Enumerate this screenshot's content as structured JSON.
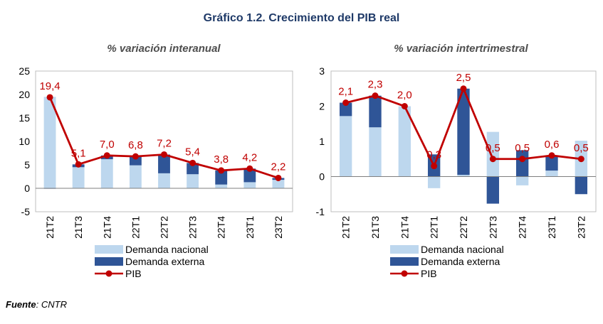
{
  "header": {
    "title": "Gráfico 1.2. Crecimiento del PIB real"
  },
  "source": {
    "label": "Fuente",
    "text": ": CNTR"
  },
  "legend_labels": {
    "nacional": "Demanda nacional",
    "externa": "Demanda externa",
    "pib": "PIB"
  },
  "colors": {
    "nacional": "#bdd7ee",
    "externa": "#2f5597",
    "pib": "#c00000",
    "axis": "#7f7f7f"
  },
  "chart_data": [
    {
      "type": "bar",
      "subtitle": "% variación interanual",
      "categories": [
        "21T2",
        "21T3",
        "21T4",
        "22T1",
        "22T2",
        "22T3",
        "22T4",
        "23T1",
        "23T2"
      ],
      "ylim": [
        -5,
        25
      ],
      "yticks": [
        -5,
        0,
        5,
        10,
        15,
        20,
        25
      ],
      "series": [
        {
          "name": "Demanda nacional",
          "kind": "stacked-bar",
          "values": [
            19.5,
            4.5,
            6.2,
            4.9,
            3.2,
            3.0,
            0.8,
            1.3,
            1.8
          ]
        },
        {
          "name": "Demanda externa",
          "kind": "stacked-bar",
          "values": [
            -0.1,
            0.6,
            0.8,
            1.9,
            4.0,
            2.4,
            3.0,
            2.9,
            0.4
          ]
        },
        {
          "name": "PIB",
          "kind": "line",
          "values": [
            19.4,
            5.1,
            7.0,
            6.8,
            7.2,
            5.4,
            3.8,
            4.2,
            2.2
          ]
        }
      ],
      "data_labels": [
        "19,4",
        "5,1",
        "7,0",
        "6,8",
        "7,2",
        "5,4",
        "3,8",
        "4,2",
        "2,2"
      ],
      "ytick_labels": [
        "-5",
        "0",
        "5",
        "10",
        "15",
        "20",
        "25"
      ]
    },
    {
      "type": "bar",
      "subtitle": "% variación intertrimestral",
      "categories": [
        "21T2",
        "21T3",
        "21T4",
        "22T1",
        "22T2",
        "22T3",
        "22T4",
        "23T1",
        "23T2"
      ],
      "ylim": [
        -1,
        3
      ],
      "yticks": [
        -1,
        0,
        1,
        2,
        3
      ],
      "series": [
        {
          "name": "Demanda nacional",
          "kind": "stacked-bar",
          "values": [
            1.72,
            1.4,
            2.0,
            -0.33,
            0.05,
            1.27,
            -0.25,
            0.17,
            1.02
          ]
        },
        {
          "name": "Demanda externa",
          "kind": "stacked-bar",
          "values": [
            0.38,
            0.9,
            0.0,
            0.63,
            2.45,
            -0.77,
            0.75,
            0.43,
            -0.5
          ]
        },
        {
          "name": "PIB",
          "kind": "line",
          "values": [
            2.1,
            2.3,
            2.0,
            0.3,
            2.5,
            0.5,
            0.5,
            0.6,
            0.5
          ]
        }
      ],
      "data_labels": [
        "2,1",
        "2,3",
        "2,0",
        "0,3",
        "2,5",
        "0,5",
        "0,5",
        "0,6",
        "0,5"
      ],
      "ytick_labels": [
        "-1",
        "0",
        "1",
        "2",
        "3"
      ]
    }
  ]
}
